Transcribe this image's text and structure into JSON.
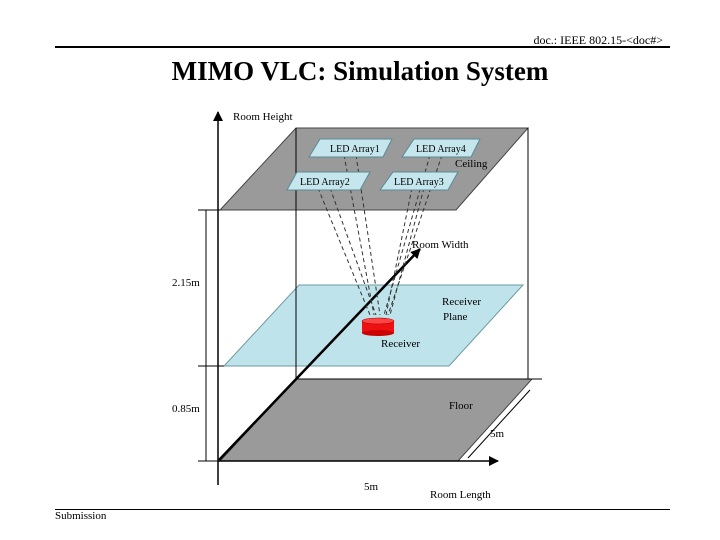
{
  "header": {
    "doc_id": "doc.: IEEE 802.15-<doc#>"
  },
  "title": "MIMO VLC: Simulation System",
  "footer": {
    "label": "Submission"
  },
  "diagram": {
    "labels": {
      "room_height": "Room Height",
      "room_width": "Room Width",
      "room_length": "Room Length",
      "ceiling": "Ceiling",
      "receiver_plane_line1": "Receiver",
      "receiver_plane_line2": "Plane",
      "receiver": "Receiver",
      "floor": "Floor"
    },
    "led_arrays": [
      "LED Array1",
      "LED Array4",
      "LED Array2",
      "LED Array3"
    ],
    "dimensions": {
      "ceiling_to_receiver": "2.15m",
      "receiver_to_floor": "0.85m",
      "floor_width": "5m",
      "floor_length": "5m"
    },
    "colors": {
      "ceiling_fill": "#9a9a9a",
      "floor_fill": "#9a9a9a",
      "receiver_plane_fill": "#bfe3ea",
      "led_fill": "#c6e6ee",
      "receiver_fill": "#ee1111"
    }
  }
}
